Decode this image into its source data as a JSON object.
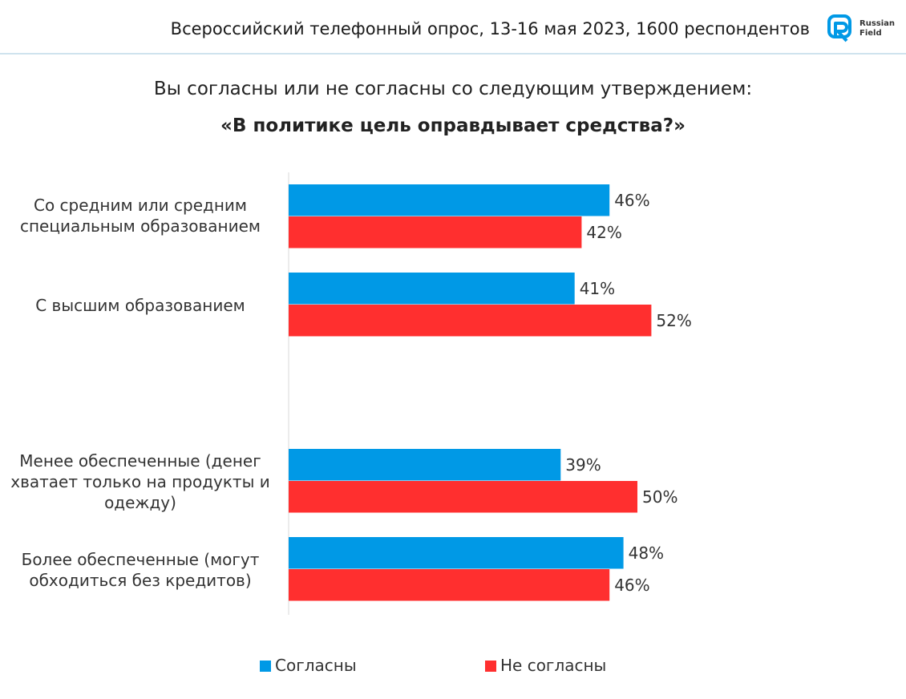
{
  "header": {
    "survey_info": "Всероссийский телефонный опрос, 13-16 мая 2023, 1600 респондентов",
    "logo_line1": "Russian",
    "logo_line2": "Field"
  },
  "colors": {
    "agree": "#0099e6",
    "disagree": "#ff2f2f",
    "accent": "#0099e6"
  },
  "chart_data": {
    "type": "bar",
    "orientation": "horizontal",
    "title": "Вы согласны или не согласны со следующим утверждением:",
    "subtitle": "«В политике цель оправдывает средства?»",
    "categories": [
      "Со средним или средним специальным образованием",
      "С высшим образованием",
      "Менее обеспеченные (денег хватает только на продукты и одежду)",
      "Более обеспеченные (могут обходиться без кредитов)"
    ],
    "series": [
      {
        "name": "Согласны",
        "values": [
          46,
          41,
          39,
          48
        ]
      },
      {
        "name": "Не согласны",
        "values": [
          42,
          52,
          50,
          46
        ]
      }
    ],
    "value_labels": {
      "agree": [
        "46%",
        "41%",
        "39%",
        "48%"
      ],
      "disagree": [
        "42%",
        "52%",
        "50%",
        "46%"
      ]
    },
    "unit": "%",
    "grid": false,
    "legend_position": "bottom"
  }
}
